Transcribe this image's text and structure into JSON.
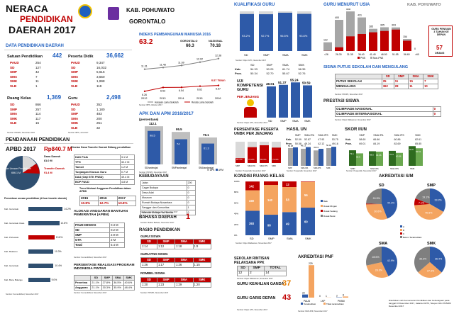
{
  "colors": {
    "accent_red": "#c00000",
    "accent_blue": "#1f5fbf",
    "bar_blue": "#2e5aa8",
    "bar_red": "#c00000",
    "bar_gray": "#a6a6a6",
    "bar_green": "#2e6b1f",
    "bar_orange": "#f4a460"
  },
  "header": {
    "title_line1": "NERACA",
    "title_line2": "PENDIDIKAN",
    "title_line3": "DAERAH 2017",
    "kab": "KAB. POHUWATO",
    "prov": "GORONTALO",
    "logo1": "kemdikbud-logo",
    "logo2": "pemda-logo"
  },
  "data_pendidikan": {
    "title": "DATA PENDIDIKAN DAERAH",
    "satuan": {
      "label": "Satuan Pendidikan",
      "total": "442",
      "items": [
        [
          "PAUD",
          "254"
        ],
        [
          "SD",
          "127"
        ],
        [
          "SMP",
          "42"
        ],
        [
          "SMA",
          "7"
        ],
        [
          "SMK",
          "11"
        ],
        [
          "SLB",
          "1"
        ]
      ]
    },
    "peserta": {
      "label": "Peserta Didik",
      "total": "36,662",
      "items": [
        [
          "PAUD",
          "9,347"
        ],
        [
          "SD",
          "16,032"
        ],
        [
          "SMP",
          "5,616"
        ],
        [
          "SMA",
          "3,550"
        ],
        [
          "SMK",
          "1,998"
        ],
        [
          "SLB",
          "119"
        ]
      ]
    },
    "ruang": {
      "label": "Ruang Kelas",
      "total": "1,369",
      "items": [
        [
          "SD",
          "866"
        ],
        [
          "SMP",
          "257"
        ],
        [
          "SMA",
          "114"
        ],
        [
          "SMK",
          "117"
        ],
        [
          "SLB",
          "15"
        ]
      ]
    },
    "guru": {
      "label": "Guru",
      "total": "2,498",
      "items": [
        [
          "PAUD",
          "352"
        ],
        [
          "SD",
          "1,180"
        ],
        [
          "SMP",
          "483"
        ],
        [
          "SMA",
          "200"
        ],
        [
          "SMK",
          "251"
        ],
        [
          "SLB",
          "32"
        ]
      ]
    },
    "source": "Sumber: PDSPK, November 2017"
  },
  "pendanaan": {
    "title": "PENDANAAN PENDIDIKAN",
    "apbd_label": "APBD 2017",
    "apbd_value": "Rp840.7 M",
    "pie_labels": {
      "non": "Non Urusan Pendidikan",
      "non_val": "666.1 M",
      "dana": "Dana Daerah",
      "dana_val": "81.0 M",
      "transfer": "Transfer Daerah",
      "transfer_val": "91.4 M"
    },
    "transfer_title": "Rincian Dana Transfer Daerah Bidang pendidikan",
    "transfer_rows": [
      [
        "DAK Fisik",
        "3.1 M"
      ],
      [
        "TPG",
        "32.2 M"
      ],
      [
        "Tamsil",
        "1.2 M"
      ],
      [
        "Tunjangan Khusus Guru",
        "0.7 M"
      ],
      [
        "DAU (Gaji GTK PNSD)",
        "49.4 M"
      ],
      [
        "BOP PAUD",
        "4.8 M"
      ]
    ],
    "pct_title": "Persentase urusan pendidikan (di luar transfer daerah)",
    "pct_rows": [
      [
        "Kab. Gorontalo",
        "14.2%"
      ],
      [
        "Kab. Gorontalo Utara",
        "12.8%"
      ],
      [
        "Kab. Pohuwato",
        "10.8%"
      ],
      [
        "Kab. Boalemo",
        "10.3%"
      ],
      [
        "Kab. Gorontalo",
        "10.4%"
      ],
      [
        "Kab. Bone Bolango",
        "9.0%"
      ]
    ],
    "trend_title": "Trend Alokasi Anggaran Pendidikan dalam APBD",
    "trend_years": [
      "2015",
      "2016",
      "2017"
    ],
    "trend_values": [
      "10.8%",
      "12.7%",
      "10.8%"
    ],
    "source": "Sumber: Kemendikbud, November 2017"
  },
  "alokasi": {
    "title": "ALOKASI ANGGARAN BANTUAN PEMERINTAH (APBN)",
    "rows": [
      [
        "PAUD-DIKMAS",
        "0.3 M"
      ],
      [
        "SD",
        "0.2 M"
      ],
      [
        "SMP",
        "2.9 M"
      ],
      [
        "GTK",
        "2 M"
      ],
      [
        "Total",
        "5.4 M"
      ]
    ],
    "source": "Sumber: Kemendikbud, November 2017"
  },
  "realisasi": {
    "title": "PERSENTASE REALISASI PROGRAM INDONESIA PINTAR",
    "headers": [
      "",
      "SD",
      "SMP",
      "SMA",
      "SMK"
    ],
    "rows": [
      [
        "Penerima",
        "21.1%",
        "27.8%",
        "36.5%",
        "40.6%"
      ],
      [
        "Anggaran",
        "21.1%",
        "30.3%",
        "35.9%",
        "48.4%"
      ]
    ],
    "source": "Sumber: Kemendikbud, November 2017"
  },
  "ipm": {
    "title": "INDEKS PEMBANGUNAN MANUSIA 2016",
    "value": "63.2",
    "label_gorontalo": "GORONTALO",
    "label_nasional": "NASIONAL",
    "gorontalo": "66.3",
    "nasional": "70.18",
    "years": [
      "2012",
      "2013",
      "2014",
      "2015",
      "2016"
    ],
    "hls": [
      "11.31",
      "11.48",
      "11.69",
      "12.02",
      "12.38"
    ],
    "rls": [
      "6.26",
      "6.53",
      "6.54",
      "6.62",
      "6.67"
    ],
    "hls_label": "Harapan Lama Sekolah",
    "rls_label": "Rerata Lama Sekolah",
    "rls_last": "6.67 Tahun",
    "source": "Sumber: BPS, Oktober 2017"
  },
  "apk": {
    "title": "APK DAN APM 2016/2017",
    "subtitle": "(persentase)",
    "categories": [
      "SD/sederajat",
      "SMP/sederajat",
      "SMA/sederajat"
    ],
    "apk": [
      112.1,
      95.5,
      79.1
    ],
    "apm": [
      98.5,
      74.0,
      61.3
    ],
    "legend_apk": "APK",
    "legend_apm": "APM",
    "source": "Sumber: PDSPK, November 2017"
  },
  "kebudayaan": {
    "title": "KEBUDAYAAN",
    "rows": [
      [
        "Jalan",
        "200"
      ],
      [
        "Cagar Budaya",
        "0"
      ],
      [
        "Desa Adat",
        "0"
      ],
      [
        "Museum",
        "0"
      ],
      [
        "Rumah Budaya Nusantara",
        "0"
      ],
      [
        "Sanggar dan Komunitas",
        "1"
      ],
      [
        "Warisan Budaya Tak Benda",
        "0"
      ]
    ],
    "source": "Sumber: Ditjen Kebudayaan, November 2017"
  },
  "bahasa": {
    "title": "BAHASA DAERAH",
    "value": "1",
    "source": "Sumber: Badan Bahasa, November 2017"
  },
  "rasio": {
    "title": "RASIO PENDIDIKAN",
    "guru_siswa": {
      "label": "GURU:SISWA",
      "headers": [
        "SD",
        "SMP",
        "SMA",
        "SMK"
      ],
      "values": [
        "1:14",
        "1:12",
        "1:18",
        "1:8"
      ]
    },
    "guru_pns": {
      "label": "GURU PNS:SISWA",
      "headers": [
        "SD",
        "SMP",
        "SMA",
        "SMK"
      ],
      "values": [
        "1:26",
        "1:17",
        "1:26",
        "1:15"
      ]
    },
    "rombel": {
      "label": "ROMBEL:SISWA",
      "headers": [
        "SD",
        "SMP",
        "SMA",
        "SMK"
      ],
      "values": [
        "1:20",
        "1:23",
        "1:29",
        "1:20"
      ]
    },
    "source": "Sumber: PDSPK, November 2017"
  },
  "kualifikasi": {
    "title": "KUALIFIKASI GURU",
    "categories": [
      "SD",
      "SMP",
      "SMA",
      "SMK"
    ],
    "values": [
      93.2,
      92.7,
      96.5,
      93.6
    ],
    "source": "Sumber: Ditjen GTK, November 2017"
  },
  "un": {
    "headers": [
      "SD",
      "SMP",
      "SMA",
      "SMK"
    ],
    "kab_label": "Kab.",
    "prov_label": "Prov.",
    "kab": [
      "54.33",
      "50.25",
      "61.74",
      "58.35"
    ],
    "prov": [
      "50.34",
      "52.70",
      "55.67",
      "52.76"
    ]
  },
  "ukg": {
    "title": "UJI KOMPETENSI GURU",
    "subtitle": "PER JENJANG",
    "categories": [
      "SD",
      "SMP",
      "SMA",
      "SMK"
    ],
    "values": [
      49.01,
      51.37,
      55.24,
      50.59
    ],
    "source": "Sumber: Ditjen GTK, November 2017"
  },
  "persentase_unbk": {
    "title": "PERSENTASE PESERTA UNBK PER JENJANG",
    "categories": [
      "SMP",
      "SMA IPA",
      "SMA IPS",
      "SMK"
    ],
    "values": [
      22.7,
      74.2,
      83.3,
      72.3
    ],
    "source": "Sumber: Puspendik, November 2017"
  },
  "hasil_un": {
    "title": "HASIL UN",
    "headers": [
      "SMP",
      "SMA IPA",
      "SMA IPS",
      "SMK"
    ],
    "kab": [
      "52.09",
      "52.87",
      "47.93",
      "53.75"
    ],
    "prov": [
      "50.58",
      "49.24",
      "42.12",
      "49.16"
    ],
    "chart": {
      "categories": [
        "SMP",
        "SMA IPA",
        "SMA IPS",
        "SMK"
      ],
      "un2016": [
        50.08,
        48.13,
        43.43,
        50.02
      ],
      "un2017": [
        52.09,
        52.87,
        47.93,
        53.75
      ],
      "legend_2016": "2016",
      "legend_2017": "2017"
    },
    "source": "Sumber: Puspendik, November 2017"
  },
  "skor_iiun": {
    "title": "SKOR IIUN",
    "headers": [
      "SMP",
      "SMA IPA",
      "SMA IPS",
      "SMK"
    ],
    "kab": [
      "58.60",
      "66.66",
      "60.86",
      "82.61"
    ],
    "prov": [
      "69.01",
      "84.19",
      "83.69",
      "85.85"
    ],
    "chart": {
      "un2016": [
        73.1,
        68.5,
        70.3,
        92.6
      ],
      "un2017": [
        58.6,
        66.66,
        60.86,
        82.61
      ],
      "legend_2016": "2016",
      "legend_2017": "2017"
    },
    "source": "Sumber: Puspendik, November 2017"
  },
  "guru_usia": {
    "title": "GURU MENURUT USIA",
    "kab": "KAB. POHUWATO",
    "categories": [
      "<26",
      "26-30",
      "31-35",
      "36-40",
      "41-45",
      "46-50",
      "51-55",
      "56-60",
      ">60"
    ],
    "values": [
      112,
      400,
      508,
      431,
      285,
      305,
      303,
      154,
      0
    ],
    "pns": [
      2,
      48,
      188,
      218,
      240,
      257,
      275,
      132,
      0
    ],
    "legend_pns": "PNS",
    "legend_nonpns": "Non-PNS",
    "callout": "GURU PENSIUN 3 TAHUN KE DEPAN",
    "callout_value": "57",
    "callout_unit": "ORANG",
    "source": "Sumber: Ditjen GTK, November 2017"
  },
  "putus_sekolah": {
    "title": "SISWA PUTUS SEKOLAH DAN MENGULANG",
    "headers": [
      "SD",
      "SMP",
      "SMA",
      "SMK"
    ],
    "rows": [
      [
        "PUTUS SEKOLAH",
        "25",
        "11",
        "15",
        "7"
      ],
      [
        "MENGULANG",
        "362",
        "28",
        "11",
        "10"
      ]
    ],
    "source": "Sumber: PDSPK, November 2017"
  },
  "prestasi": {
    "title": "PRESTASI SISWA",
    "rows": [
      [
        "OLIMPIADE NASIONAL",
        "0"
      ],
      [
        "OLIMPIADE INTERNASIONAL",
        "0"
      ]
    ],
    "source": "Sumber: Ditjen Dikdasmen, November 2017"
  },
  "kondisi_ruang": {
    "title": "KONDISI RUANG KELAS",
    "categories": [
      "SD",
      "SMP",
      "SMA",
      "SMK"
    ],
    "baik": [
      393,
      98,
      49,
      60
    ],
    "rusak_ringan": [
      330,
      142,
      53,
      56
    ],
    "rusak_sedang": [
      142,
      17,
      12,
      1
    ],
    "rusak_berat": [
      1,
      0,
      0,
      0
    ],
    "legend": [
      "Baik",
      "Rusak Ringan",
      "Rusak Sedang",
      "Rusak Berat"
    ],
    "source": "Sumber: Ditjen Dikdasmen, November 2017"
  },
  "rintisan": {
    "title": "SEKOLAH RINTISAN PELAKSANA PPK",
    "headers": [
      "SD",
      "SMP",
      "TOTAL"
    ],
    "values": [
      "12",
      "2",
      "14"
    ],
    "source": "Sumber: Ditjen Dikdasmen, November 2017"
  },
  "guru_keahlian": {
    "title": "GURU KEAHLIAN GANDA",
    "value": "37"
  },
  "guru_garis": {
    "title": "GURU GARIS DEPAN",
    "value": "43",
    "source": "Sumber: Ditjen GTK, November 2017"
  },
  "akreditasi_pnf": {
    "title": "AKREDITASI PNF",
    "categories": [
      "PAUD",
      "LKP",
      "PKBM"
    ],
    "terakreditasi": [
      22,
      0,
      2
    ],
    "tidak": [
      229,
      1,
      8
    ],
    "legend_a": "Terakreditasi",
    "legend_b": "Tidak terakreditasi",
    "source": "Sumber: BAN-PNF, November 2017"
  },
  "akreditasi_sm": {
    "title": "AKREDITASI S/M",
    "pies": [
      {
        "name": "SD",
        "slices": [
          44.1,
          30.6,
          0.8,
          24.5
        ]
      },
      {
        "name": "SMP",
        "slices": [
          33.3,
          40.5,
          7.1,
          19.1
        ]
      },
      {
        "name": "SMA",
        "slices": [
          42.9,
          28.6,
          0,
          28.5
        ]
      },
      {
        "name": "SMK",
        "slices": [
          36.4,
          27.3,
          0,
          36.3
        ]
      }
    ],
    "legend": [
      "A",
      "B",
      "C",
      "Belum Terakreditasi"
    ],
    "footer": "Diterbitkan oleh Kementerian Pendidikan dan Kebudayaan pada tanggal 10 Desember 2017, Jakarta 10270, Telepon 021-5725480 Desember 2017"
  }
}
